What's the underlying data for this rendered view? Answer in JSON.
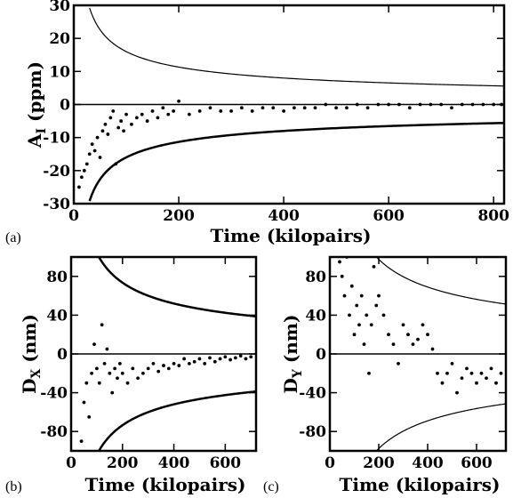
{
  "chart_data": [
    {
      "type": "scatter",
      "panel_label": "(a)",
      "xlabel": "Time (kilopairs)",
      "ylabel_main": "A",
      "ylabel_sub": "I",
      "ylabel_unit": " (ppm)",
      "xlim": [
        0,
        820
      ],
      "ylim": [
        -30,
        30
      ],
      "xticks": [
        0,
        200,
        400,
        600,
        800
      ],
      "yticks": [
        -30,
        -20,
        -10,
        0,
        10,
        20,
        30
      ],
      "zero_line": 0,
      "bounds": {
        "type": "reciprocal_sqrt",
        "coef_upper": 160,
        "coef_lower": 160,
        "upper_width": 1.2,
        "lower_width": 2.5,
        "x_start": 30
      },
      "series": [
        {
          "x": [
            10,
            15,
            20,
            25,
            30,
            35,
            40,
            45,
            50,
            55,
            60,
            65,
            70,
            75,
            80,
            85,
            90,
            95,
            100,
            110,
            120,
            130,
            140,
            150,
            160,
            170,
            180,
            190,
            200,
            220,
            240,
            260,
            280,
            300,
            320,
            340,
            360,
            380,
            400,
            420,
            440,
            460,
            480,
            500,
            520,
            540,
            560,
            580,
            600,
            620,
            640,
            660,
            680,
            700,
            720,
            740,
            760,
            780,
            800,
            815
          ],
          "y": [
            -25,
            -22,
            -20,
            -18,
            -15,
            -12,
            -14,
            -10,
            -16,
            -8,
            -6,
            -9,
            -4,
            -2,
            -18,
            -7,
            -5,
            -8,
            -3,
            -6,
            -4,
            -3,
            -5,
            -2,
            -4,
            -1,
            -3,
            -2,
            1,
            -3,
            -2,
            -1,
            -2,
            -2,
            -1,
            -2,
            -1,
            -1,
            -2,
            -1,
            -1,
            -1,
            0,
            -1,
            -1,
            0,
            -1,
            0,
            0,
            0,
            -1,
            0,
            0,
            0,
            -1,
            0,
            0,
            0,
            0,
            0
          ]
        }
      ]
    },
    {
      "type": "scatter",
      "panel_label": "(b)",
      "xlabel": "Time (kilopairs)",
      "ylabel_main": "D",
      "ylabel_sub": "X",
      "ylabel_unit": " (nm)",
      "xlim": [
        0,
        720
      ],
      "ylim": [
        -100,
        100
      ],
      "xticks": [
        0,
        200,
        400,
        600
      ],
      "yticks": [
        -80,
        -40,
        0,
        40,
        80
      ],
      "zero_line": 0,
      "bounds": {
        "type": "reciprocal_sqrt",
        "coef_upper": 1040,
        "coef_lower": 1040,
        "upper_width": 2.5,
        "lower_width": 2.5,
        "x_start": 108
      },
      "series": [
        {
          "x": [
            40,
            50,
            60,
            70,
            80,
            90,
            100,
            110,
            120,
            130,
            140,
            150,
            160,
            170,
            180,
            190,
            200,
            220,
            240,
            260,
            280,
            300,
            320,
            340,
            360,
            380,
            400,
            420,
            440,
            460,
            480,
            500,
            520,
            540,
            560,
            580,
            600,
            620,
            640,
            660,
            680,
            700
          ],
          "y": [
            -90,
            -50,
            -30,
            -65,
            -20,
            10,
            -15,
            -30,
            30,
            -10,
            5,
            -20,
            -40,
            -15,
            -25,
            -10,
            -20,
            -30,
            -15,
            -25,
            -20,
            -15,
            -10,
            -18,
            -12,
            -15,
            -10,
            -12,
            -5,
            -10,
            -8,
            -5,
            -10,
            -4,
            -8,
            -5,
            -3,
            -6,
            -4,
            -2,
            -5,
            -3
          ]
        }
      ]
    },
    {
      "type": "scatter",
      "panel_label": "(c)",
      "xlabel": "Time (kilopairs)",
      "ylabel_main": "D",
      "ylabel_sub": "Y",
      "ylabel_unit": " (nm)",
      "xlim": [
        0,
        720
      ],
      "ylim": [
        -100,
        100
      ],
      "xticks": [
        0,
        200,
        400,
        600
      ],
      "yticks": [
        -80,
        -40,
        0,
        40,
        80
      ],
      "zero_line": 0,
      "bounds": {
        "type": "reciprocal_sqrt",
        "coef_upper": 1380,
        "coef_lower": 1380,
        "upper_width": 1.2,
        "lower_width": 1.2,
        "x_start": 190
      },
      "series": [
        {
          "x": [
            40,
            50,
            60,
            70,
            80,
            90,
            100,
            110,
            120,
            130,
            140,
            150,
            160,
            170,
            180,
            190,
            200,
            220,
            240,
            260,
            280,
            300,
            320,
            340,
            360,
            380,
            400,
            420,
            440,
            460,
            480,
            500,
            520,
            540,
            560,
            580,
            600,
            620,
            640,
            660,
            680,
            700
          ],
          "y": [
            95,
            80,
            60,
            100,
            40,
            70,
            20,
            50,
            30,
            60,
            10,
            40,
            -20,
            30,
            90,
            50,
            60,
            40,
            20,
            10,
            -10,
            30,
            20,
            10,
            15,
            30,
            20,
            5,
            -20,
            -30,
            -20,
            -10,
            -40,
            -25,
            -15,
            -20,
            -30,
            -20,
            -25,
            -15,
            -30,
            -20
          ]
        }
      ]
    }
  ]
}
